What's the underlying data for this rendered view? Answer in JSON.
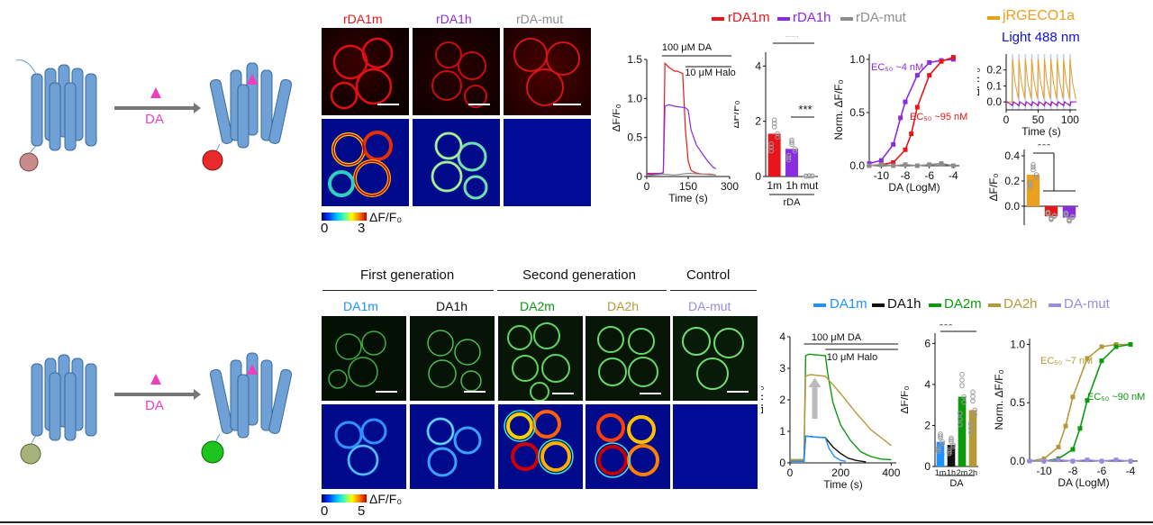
{
  "panel_a": {
    "stimulus": "DA",
    "rows": {
      "labels": [
        "rDA1m",
        "rDA1h",
        "rDA-mut"
      ],
      "label_colors": [
        "#e8161b",
        "#8a2be2",
        "#8c8c8c"
      ]
    },
    "colorbar": {
      "min": "0",
      "max": "3",
      "unit": "ΔF/F₀"
    },
    "legend": [
      "rDA1m",
      "rDA1h",
      "rDA-mut"
    ],
    "legend_colors": [
      "#e8161b",
      "#8a2be2",
      "#8c8c8c"
    ],
    "jrgeco_label": "jRGECO1a",
    "light_label": "Light 488 nm"
  },
  "panel_b": {
    "headers": [
      "First generation",
      "Second generation",
      "Control"
    ],
    "labels": [
      "DA1m",
      "DA1h",
      "DA2m",
      "DA2h",
      "DA-mut"
    ],
    "label_colors": [
      "#1e90ff",
      "#111111",
      "#0b9a0b",
      "#b59a3a",
      "#9a8ae0"
    ],
    "colorbar": {
      "min": "0",
      "max": "5",
      "unit": "ΔF/F₀"
    },
    "legend": [
      "DA1m",
      "DA1h",
      "DA2m",
      "DA2h",
      "DA-mut"
    ],
    "legend_colors": [
      "#1e90ff",
      "#111111",
      "#0b9a0b",
      "#b59a3a",
      "#9a8ae0"
    ]
  },
  "chart_data": [
    {
      "id": "a-trace",
      "type": "line",
      "xlabel": "Time (s)",
      "ylabel": "ΔF/F₀",
      "xlim": [
        0,
        300
      ],
      "ylim": [
        0,
        1.5
      ],
      "xticks": [
        "0",
        "150",
        "300"
      ],
      "yticks": [
        "0",
        "0.5",
        "1.0",
        "1.5"
      ],
      "annotations": [
        "100 μM DA",
        "10 μM Halo"
      ],
      "series": [
        {
          "name": "rDA1m",
          "color": "#e8161b",
          "x": [
            0,
            50,
            60,
            66,
            80,
            100,
            110,
            130,
            140,
            150,
            160,
            175,
            200,
            230,
            250
          ],
          "y": [
            0.03,
            0.03,
            0.05,
            1.45,
            1.4,
            1.35,
            1.35,
            1.32,
            0.6,
            0.2,
            0.08,
            0.05,
            0.03,
            0.03,
            0.02
          ]
        },
        {
          "name": "rDA1h",
          "color": "#8a2be2",
          "x": [
            0,
            50,
            60,
            66,
            80,
            100,
            140,
            150,
            160,
            180,
            200,
            220,
            240,
            250
          ],
          "y": [
            0.04,
            0.04,
            0.05,
            0.9,
            0.92,
            0.9,
            0.88,
            0.85,
            0.6,
            0.4,
            0.3,
            0.2,
            0.12,
            0.1
          ]
        },
        {
          "name": "rDA-mut",
          "color": "#8c8c8c",
          "x": [
            0,
            60,
            100,
            150,
            200,
            250
          ],
          "y": [
            0.01,
            0.03,
            0.02,
            0.04,
            0.03,
            0.02
          ]
        }
      ]
    },
    {
      "id": "a-bars",
      "type": "bar",
      "ylabel": "ΔF/F₀",
      "ylim": [
        0,
        4.5
      ],
      "yticks": [
        "0",
        "2",
        "4"
      ],
      "categories": [
        "1m",
        "1h",
        "mut"
      ],
      "group_label": "rDA",
      "values": [
        1.55,
        1.0,
        0.02
      ],
      "colors": [
        "#e8161b",
        "#8a2be2",
        "#8c8c8c"
      ],
      "significance": [
        "***",
        "***"
      ]
    },
    {
      "id": "a-dose",
      "type": "line",
      "xlabel": "DA (LogM)",
      "ylabel": "Norm. ΔF/F₀",
      "xlim": [
        -11,
        -3.5
      ],
      "ylim": [
        0,
        1.05
      ],
      "xticks": [
        "-10",
        "-8",
        "-6",
        "-4"
      ],
      "yticks": [
        "0.0",
        "0.5",
        "1.0"
      ],
      "annotations": [
        "EC₅₀ ~4 nM",
        "EC₅₀ ~95 nM"
      ],
      "series": [
        {
          "name": "rDA1h",
          "color": "#8a2be2",
          "x": [
            -11,
            -10,
            -9,
            -8.4,
            -8,
            -7,
            -6,
            -5,
            -4
          ],
          "y": [
            0.02,
            0.05,
            0.2,
            0.45,
            0.6,
            0.85,
            0.97,
            0.99,
            1.0
          ]
        },
        {
          "name": "rDA1m",
          "color": "#e8161b",
          "x": [
            -11,
            -10,
            -9,
            -8,
            -7.5,
            -7,
            -6,
            -5,
            -4
          ],
          "y": [
            0.0,
            0.01,
            0.03,
            0.15,
            0.3,
            0.55,
            0.85,
            0.98,
            1.02
          ]
        },
        {
          "name": "rDA-mut",
          "color": "#8c8c8c",
          "x": [
            -11,
            -10,
            -9,
            -8,
            -7,
            -6,
            -5,
            -4
          ],
          "y": [
            0.0,
            0.01,
            0.0,
            0.01,
            0.0,
            0.01,
            0.02,
            0.0
          ]
        }
      ]
    },
    {
      "id": "a-jrgeco-trace",
      "type": "line",
      "xlabel": "Time (s)",
      "ylabel": "ΔF/F₀",
      "xlim": [
        0,
        110
      ],
      "ylim": [
        -0.05,
        0.3
      ],
      "xticks": [
        "0",
        "50",
        "100"
      ],
      "yticks": [
        "0.0",
        "0.1",
        "0.2"
      ],
      "series": [
        {
          "name": "jRGECO1a",
          "color": "#e8a020",
          "x": [
            0,
            9,
            10,
            14,
            19,
            20,
            24,
            29,
            30,
            34,
            39,
            40,
            44,
            49,
            50,
            54,
            59,
            60,
            64,
            69,
            70,
            74,
            79,
            80,
            84,
            89,
            90,
            94,
            99,
            100,
            104,
            109,
            110
          ],
          "y": [
            0,
            0,
            0.27,
            0.12,
            0.02,
            0.27,
            0.12,
            0.02,
            0.27,
            0.12,
            0.02,
            0.27,
            0.12,
            0.02,
            0.27,
            0.12,
            0.02,
            0.27,
            0.12,
            0.02,
            0.27,
            0.12,
            0.02,
            0.27,
            0.12,
            0.02,
            0.27,
            0.12,
            0.02,
            0.27,
            0.12,
            0.02,
            0.02
          ]
        },
        {
          "name": "rDA1m",
          "color": "#e8161b",
          "x": [
            0,
            10,
            11,
            20,
            21,
            30,
            31,
            40,
            41,
            50,
            51,
            60,
            61,
            70,
            71,
            80,
            81,
            90,
            91,
            100,
            101,
            110
          ],
          "y": [
            0,
            -0.02,
            0,
            -0.02,
            0,
            -0.02,
            0,
            -0.02,
            0,
            -0.02,
            0,
            -0.02,
            0,
            -0.02,
            0,
            -0.02,
            0,
            -0.02,
            0,
            -0.02,
            0,
            0
          ]
        },
        {
          "name": "rDA1h",
          "color": "#8a2be2",
          "x": [
            0,
            10,
            12,
            20,
            22,
            30,
            32,
            40,
            42,
            50,
            52,
            60,
            62,
            70,
            72,
            80,
            82,
            90,
            92,
            100,
            102,
            110
          ],
          "y": [
            0.005,
            -0.025,
            0,
            -0.025,
            0,
            -0.025,
            0,
            -0.025,
            0,
            -0.025,
            0,
            -0.025,
            0,
            -0.025,
            0,
            -0.025,
            0,
            -0.025,
            0,
            -0.025,
            0,
            0
          ]
        }
      ]
    },
    {
      "id": "a-jrgeco-bars",
      "type": "bar",
      "ylabel": "ΔF/F₀",
      "ylim": [
        -0.15,
        0.45
      ],
      "yticks": [
        "0.0",
        "0.2",
        "0.4"
      ],
      "values": [
        0.25,
        -0.08,
        -0.09
      ],
      "colors": [
        "#e8a020",
        "#e8161b",
        "#8a2be2"
      ],
      "significance": [
        "***"
      ]
    },
    {
      "id": "b-trace",
      "type": "line",
      "xlabel": "Time (s)",
      "ylabel": "ΔF/F₀",
      "xlim": [
        0,
        420
      ],
      "ylim": [
        0,
        4
      ],
      "xticks": [
        "0",
        "200",
        "400"
      ],
      "yticks": [
        "0",
        "1",
        "2",
        "3",
        "4"
      ],
      "annotations": [
        "100 μM DA",
        "10 μM Halo"
      ],
      "series": [
        {
          "name": "DA2m",
          "color": "#0b9a0b",
          "x": [
            0,
            55,
            62,
            75,
            140,
            150,
            170,
            200,
            240,
            280,
            320,
            360,
            400
          ],
          "y": [
            0.1,
            0.1,
            3.4,
            3.45,
            3.4,
            2.8,
            1.9,
            1.2,
            0.7,
            0.35,
            0.2,
            0.12,
            0.1
          ]
        },
        {
          "name": "DA2h",
          "color": "#b59a3a",
          "x": [
            0,
            55,
            62,
            80,
            140,
            200,
            260,
            320,
            360,
            400
          ],
          "y": [
            0.1,
            0.1,
            2.75,
            2.8,
            2.75,
            2.2,
            1.6,
            1.05,
            0.8,
            0.55
          ]
        },
        {
          "name": "DA1h",
          "color": "#111111",
          "x": [
            0,
            55,
            62,
            100,
            140,
            170,
            200,
            230,
            260,
            300
          ],
          "y": [
            0.05,
            0.05,
            0.85,
            0.82,
            0.8,
            0.5,
            0.3,
            0.15,
            0.08,
            0.03
          ]
        },
        {
          "name": "DA1m",
          "color": "#1e90ff",
          "x": [
            0,
            55,
            62,
            100,
            140,
            155,
            175,
            200,
            220
          ],
          "y": [
            0.05,
            0.05,
            0.85,
            0.82,
            0.8,
            0.45,
            0.2,
            0.08,
            0.05
          ]
        }
      ]
    },
    {
      "id": "b-bars",
      "type": "bar",
      "ylabel": "ΔF/F₀",
      "ylim": [
        0,
        6.5
      ],
      "yticks": [
        "0",
        "2",
        "4",
        "6"
      ],
      "categories": [
        "1m",
        "1h",
        "2m",
        "2h"
      ],
      "group_label": "DA",
      "values": [
        1.2,
        1.05,
        3.4,
        2.75
      ],
      "colors": [
        "#1e90ff",
        "#111111",
        "#0b9a0b",
        "#b59a3a"
      ],
      "significance": [
        "***"
      ]
    },
    {
      "id": "b-dose",
      "type": "line",
      "xlabel": "DA (LogM)",
      "ylabel": "Norm. ΔF/F₀",
      "xlim": [
        -11,
        -3.5
      ],
      "ylim": [
        0,
        1.05
      ],
      "xticks": [
        "-10",
        "-8",
        "-6",
        "-4"
      ],
      "yticks": [
        "0.0",
        "0.5",
        "1.0"
      ],
      "annotations": [
        "EC₅₀ ~7 nM",
        "EC₅₀ ~90 nM"
      ],
      "series": [
        {
          "name": "DA2h",
          "color": "#b59a3a",
          "x": [
            -11,
            -10,
            -9,
            -8.5,
            -8,
            -7,
            -6,
            -5,
            -4
          ],
          "y": [
            0.0,
            0.02,
            0.12,
            0.3,
            0.55,
            0.88,
            0.98,
            1.0,
            1.0
          ]
        },
        {
          "name": "DA2m",
          "color": "#0b9a0b",
          "x": [
            -11,
            -10,
            -9,
            -8,
            -7.5,
            -7,
            -6,
            -5,
            -4
          ],
          "y": [
            0.0,
            0.0,
            0.02,
            0.1,
            0.28,
            0.52,
            0.86,
            0.98,
            1.0
          ]
        },
        {
          "name": "DA-mut",
          "color": "#9a8ae0",
          "x": [
            -11,
            -10,
            -9,
            -8,
            -7,
            -6,
            -5,
            -4
          ],
          "y": [
            0.0,
            0.0,
            0.01,
            0.0,
            0.01,
            0.0,
            0.01,
            0.0
          ]
        }
      ]
    }
  ]
}
